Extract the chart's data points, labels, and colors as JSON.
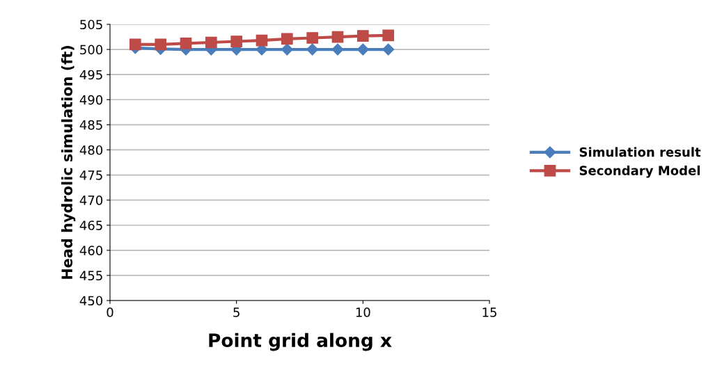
{
  "chart_data": {
    "type": "line",
    "xlabel": "Point grid along x",
    "ylabel": "Head hydrolic simulation (ft)",
    "x": [
      1,
      2,
      3,
      4,
      5,
      6,
      7,
      8,
      9,
      10,
      11
    ],
    "series": [
      {
        "name": "Simulation result",
        "color": "#4a7ebb",
        "marker": "diamond",
        "values": [
          500.3,
          500.1,
          500,
          500,
          500,
          500,
          500,
          500,
          500,
          500,
          500
        ]
      },
      {
        "name": "Secondary Model",
        "color": "#be4b48",
        "marker": "square",
        "values": [
          501,
          501,
          501.2,
          501.4,
          501.6,
          501.8,
          502.1,
          502.3,
          502.5,
          502.7,
          502.8
        ]
      }
    ],
    "xlim": [
      0,
      15
    ],
    "xticks": [
      0,
      5,
      10,
      15
    ],
    "ylim": [
      450,
      505
    ],
    "yticks": [
      450,
      455,
      460,
      465,
      470,
      475,
      480,
      485,
      490,
      495,
      500,
      505
    ],
    "grid": "y",
    "legend": "right",
    "line_style": "solid"
  }
}
